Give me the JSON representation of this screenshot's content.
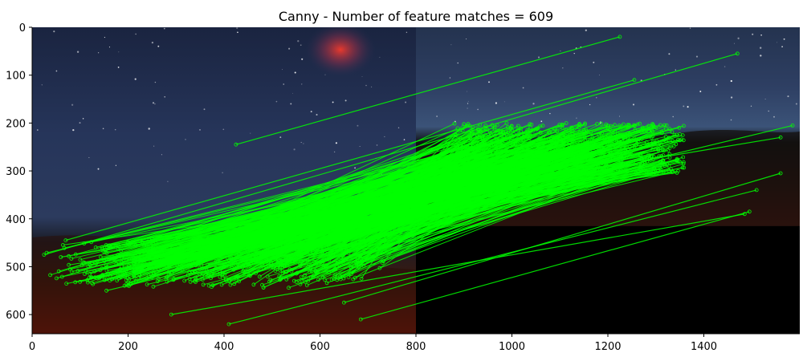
{
  "chart_data": {
    "type": "image",
    "title": "Canny - Number of feature matches = 609",
    "match_count": 609,
    "xlim": [
      0,
      1600
    ],
    "ylim": [
      640,
      0
    ],
    "xticks": [
      0,
      200,
      400,
      600,
      800,
      1000,
      1200,
      1400
    ],
    "yticks": [
      0,
      100,
      200,
      300,
      400,
      500,
      600
    ],
    "images": [
      {
        "name": "left-image",
        "x_range": [
          0,
          800
        ],
        "y_range": [
          0,
          640
        ]
      },
      {
        "name": "right-image",
        "x_range": [
          800,
          1600
        ],
        "y_range": [
          0,
          415
        ]
      }
    ],
    "match_color": "#00ff00",
    "colors": {
      "sky_dark": "#0d1527",
      "sky_mid": "#26355a",
      "ground_red": "#7a1a0c",
      "background": "#000000"
    },
    "sample_matches": [
      {
        "from": [
          425,
          245
        ],
        "to": [
          1225,
          20
        ]
      },
      {
        "from": [
          25,
          475
        ],
        "to": [
          1470,
          55
        ]
      },
      {
        "from": [
          70,
          445
        ],
        "to": [
          1255,
          110
        ]
      },
      {
        "from": [
          290,
          600
        ],
        "to": [
          1485,
          390
        ]
      },
      {
        "from": [
          410,
          620
        ],
        "to": [
          1510,
          340
        ]
      },
      {
        "from": [
          685,
          610
        ],
        "to": [
          1495,
          385
        ]
      },
      {
        "from": [
          650,
          575
        ],
        "to": [
          1560,
          305
        ]
      },
      {
        "from": [
          120,
          515
        ],
        "to": [
          1000,
          215
        ]
      },
      {
        "from": [
          155,
          550
        ],
        "to": [
          1585,
          205
        ]
      },
      {
        "from": [
          60,
          480
        ],
        "to": [
          1560,
          230
        ]
      }
    ]
  }
}
